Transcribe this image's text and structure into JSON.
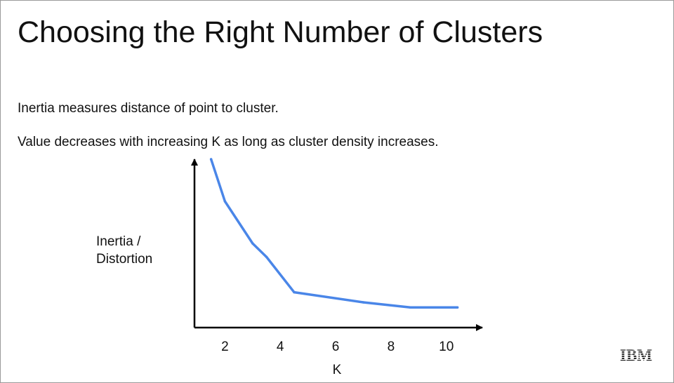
{
  "slide": {
    "title": "Choosing the Right Number of Clusters",
    "bullets": [
      "Inertia measures distance of point to cluster.",
      "Value decreases with increasing K as long as cluster density increases."
    ],
    "logo": "IBM"
  },
  "chart_data": {
    "type": "line",
    "xlabel": "K",
    "ylabel_lines": [
      "Inertia /",
      "Distortion"
    ],
    "xlim": [
      0.9,
      11.3
    ],
    "ylim": [
      0,
      10
    ],
    "xticks": [
      2,
      4,
      6,
      8,
      10
    ],
    "y_tick_labels": false,
    "grid": false,
    "line_color": "#4a86e8",
    "series": [
      {
        "x": [
          1.5,
          2.0,
          3.0,
          3.5,
          4.5,
          7.0,
          8.7,
          10.4
        ],
        "y": [
          10.0,
          7.5,
          5.0,
          4.2,
          2.1,
          1.5,
          1.2,
          1.2
        ]
      }
    ]
  }
}
